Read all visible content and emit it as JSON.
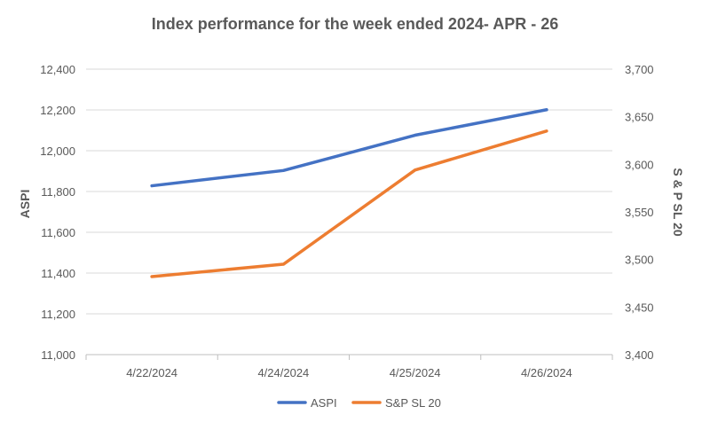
{
  "chart_data": {
    "type": "line",
    "title": "Index performance for the week ended 2024- APR - 26",
    "categories": [
      "4/22/2024",
      "4/24/2024",
      "4/25/2024",
      "4/26/2024"
    ],
    "y_left": {
      "label": "ASPI",
      "range": [
        11000,
        12400
      ],
      "ticks": [
        "11,000",
        "11,200",
        "11,400",
        "11,600",
        "11,800",
        "12,000",
        "12,200",
        "12,400"
      ]
    },
    "y_right": {
      "label": "S & P SL 20",
      "range": [
        3400,
        3700
      ],
      "ticks": [
        "3,400",
        "3,450",
        "3,500",
        "3,550",
        "3,600",
        "3,650",
        "3,700"
      ]
    },
    "series": [
      {
        "name": "ASPI",
        "axis": "left",
        "color": "#4472C4",
        "values": [
          11828,
          11903,
          12076,
          12201
        ]
      },
      {
        "name": "S&P SL 20",
        "axis": "right",
        "color": "#ED7D31",
        "values": [
          3482,
          3495,
          3594,
          3635
        ]
      }
    ],
    "grid": true,
    "legend_position": "bottom"
  }
}
